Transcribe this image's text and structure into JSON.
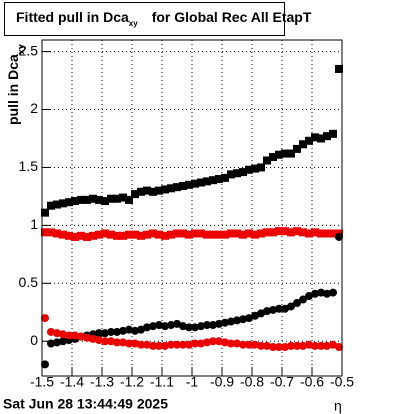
{
  "chart_data": {
    "type": "scatter",
    "title": {
      "main": "Fitted pull in Dca",
      "sub": "xy",
      "rest": "for Global Rec All EtapT"
    },
    "y_label": {
      "main": "pull in Dca",
      "sub": "xy"
    },
    "x_label": "η",
    "timestamp": "Sat Jun 28 13:44:49 2025",
    "xlim": [
      -1.5,
      -0.5
    ],
    "xticks": [
      -1.5,
      -1.4,
      -1.3,
      -1.2,
      -1.1,
      -1,
      -0.9,
      -0.8,
      -0.7,
      -0.6,
      -0.5
    ],
    "ylim": [
      -0.3,
      2.6
    ],
    "yticks": [
      0,
      0.5,
      1,
      1.5,
      2,
      2.5
    ],
    "grid": true,
    "x": [
      -1.49,
      -1.47,
      -1.45,
      -1.43,
      -1.41,
      -1.39,
      -1.37,
      -1.35,
      -1.33,
      -1.31,
      -1.29,
      -1.27,
      -1.25,
      -1.23,
      -1.21,
      -1.19,
      -1.17,
      -1.15,
      -1.13,
      -1.11,
      -1.09,
      -1.07,
      -1.05,
      -1.03,
      -1.01,
      -0.99,
      -0.97,
      -0.95,
      -0.93,
      -0.91,
      -0.89,
      -0.87,
      -0.85,
      -0.83,
      -0.81,
      -0.79,
      -0.77,
      -0.75,
      -0.73,
      -0.71,
      -0.69,
      -0.67,
      -0.65,
      -0.63,
      -0.61,
      -0.59,
      -0.57,
      -0.55,
      -0.53,
      -0.51
    ],
    "series": [
      {
        "marker": "square",
        "color": "#000000",
        "values": [
          1.11,
          1.17,
          1.18,
          1.19,
          1.2,
          1.21,
          1.22,
          1.22,
          1.23,
          1.22,
          1.21,
          1.23,
          1.23,
          1.24,
          1.22,
          1.27,
          1.29,
          1.3,
          1.29,
          1.3,
          1.31,
          1.32,
          1.33,
          1.34,
          1.35,
          1.36,
          1.37,
          1.38,
          1.39,
          1.4,
          1.41,
          1.44,
          1.45,
          1.46,
          1.48,
          1.49,
          1.5,
          1.56,
          1.59,
          1.61,
          1.62,
          1.62,
          1.66,
          1.7,
          1.73,
          1.76,
          1.75,
          1.77,
          1.79,
          2.35
        ]
      },
      {
        "marker": "square",
        "color": "#ee0000",
        "values": [
          0.94,
          0.94,
          0.93,
          0.92,
          0.91,
          0.9,
          0.91,
          0.9,
          0.91,
          0.92,
          0.93,
          0.92,
          0.91,
          0.91,
          0.92,
          0.92,
          0.91,
          0.92,
          0.93,
          0.92,
          0.91,
          0.92,
          0.93,
          0.93,
          0.92,
          0.93,
          0.93,
          0.92,
          0.92,
          0.92,
          0.92,
          0.93,
          0.93,
          0.92,
          0.93,
          0.92,
          0.93,
          0.94,
          0.94,
          0.95,
          0.95,
          0.94,
          0.95,
          0.94,
          0.93,
          0.94,
          0.93,
          0.93,
          0.93,
          0.93
        ]
      },
      {
        "marker": "circle",
        "color": "#000000",
        "values": [
          -0.2,
          -0.02,
          -0.01,
          0,
          0.01,
          0.02,
          0.04,
          0.05,
          0.06,
          0.07,
          0.07,
          0.08,
          0.08,
          0.09,
          0.1,
          0.09,
          0.1,
          0.12,
          0.13,
          0.14,
          0.13,
          0.14,
          0.15,
          0.13,
          0.12,
          0.12,
          0.13,
          0.14,
          0.14,
          0.15,
          0.16,
          0.17,
          0.18,
          0.19,
          0.2,
          0.22,
          0.24,
          0.26,
          0.27,
          0.28,
          0.28,
          0.3,
          0.33,
          0.36,
          0.39,
          0.41,
          0.42,
          0.41,
          0.42,
          0.9
        ]
      },
      {
        "marker": "circle",
        "color": "#ee0000",
        "values": [
          0.2,
          0.08,
          0.07,
          0.06,
          0.05,
          0.05,
          0.04,
          0.03,
          0.02,
          0.01,
          0,
          0,
          -0.01,
          -0.01,
          -0.02,
          -0.02,
          -0.03,
          -0.03,
          -0.04,
          -0.04,
          -0.04,
          -0.03,
          -0.03,
          -0.03,
          -0.03,
          -0.02,
          -0.02,
          -0.01,
          0,
          0,
          -0.01,
          -0.02,
          -0.02,
          -0.03,
          -0.03,
          -0.03,
          -0.04,
          -0.04,
          -0.05,
          -0.05,
          -0.05,
          -0.04,
          -0.04,
          -0.04,
          -0.03,
          -0.04,
          -0.04,
          -0.04,
          -0.03,
          -0.05
        ]
      }
    ]
  }
}
